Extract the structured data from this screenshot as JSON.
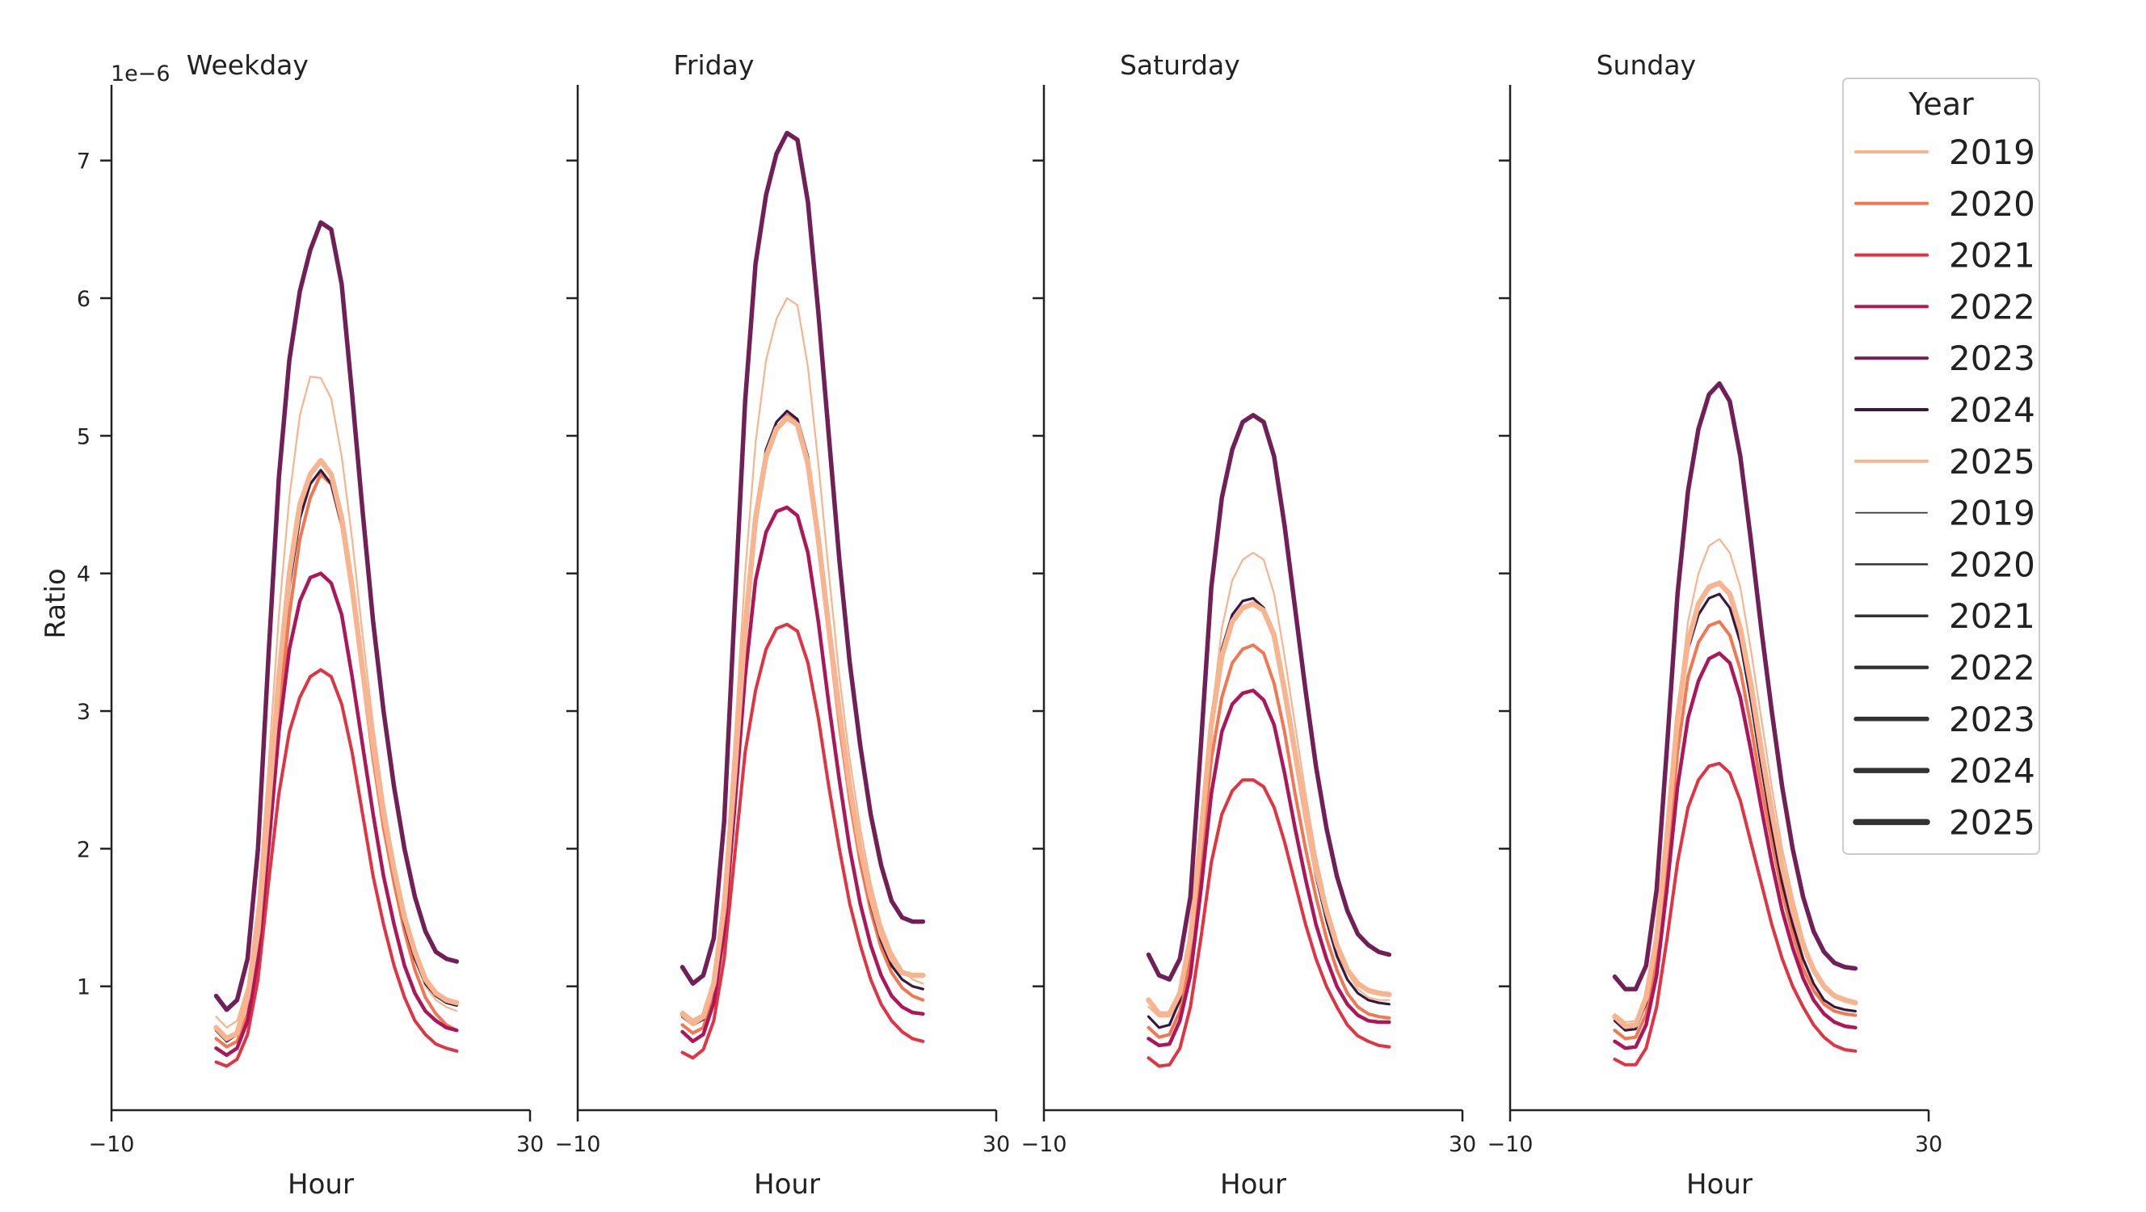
{
  "chart_data": {
    "type": "line",
    "y_exponent_label": "1e−6",
    "ylabel": "Ratio",
    "xlabel": "Hour",
    "xlim": [
      -10,
      30
    ],
    "ylim": [
      0.1,
      7.55
    ],
    "x_ticks": [
      -10,
      30
    ],
    "x_tick_labels": [
      "−10",
      "30"
    ],
    "y_ticks": [
      1,
      2,
      3,
      4,
      5,
      6,
      7
    ],
    "y_tick_labels": [
      "1",
      "2",
      "3",
      "4",
      "5",
      "6",
      "7"
    ],
    "x": [
      0,
      1,
      2,
      3,
      4,
      5,
      6,
      7,
      8,
      9,
      10,
      11,
      12,
      13,
      14,
      15,
      16,
      17,
      18,
      19,
      20,
      21,
      22,
      23
    ],
    "legend": {
      "title": "Year",
      "position": "upper-right",
      "hue_entries": [
        {
          "label": "2019",
          "color": "#f6b48f"
        },
        {
          "label": "2020",
          "color": "#f37651"
        },
        {
          "label": "2021",
          "color": "#e13342"
        },
        {
          "label": "2022",
          "color": "#ad1759"
        },
        {
          "label": "2023",
          "color": "#701f57"
        },
        {
          "label": "2024",
          "color": "#35193e"
        },
        {
          "label": "2025",
          "color": "#f6b48f"
        }
      ],
      "size_entries": [
        {
          "label": "2019",
          "color": "#333333"
        },
        {
          "label": "2020",
          "color": "#333333"
        },
        {
          "label": "2021",
          "color": "#333333"
        },
        {
          "label": "2022",
          "color": "#333333"
        },
        {
          "label": "2023",
          "color": "#333333"
        },
        {
          "label": "2024",
          "color": "#333333"
        },
        {
          "label": "2025",
          "color": "#333333"
        }
      ]
    },
    "panels": [
      {
        "title": "Weekday",
        "series": [
          {
            "name": "2019",
            "color": "#f6b48f",
            "values": [
              0.78,
              0.7,
              0.75,
              1.0,
              1.6,
              2.6,
              3.7,
              4.55,
              5.15,
              5.43,
              5.42,
              5.27,
              4.85,
              4.25,
              3.55,
              2.9,
              2.35,
              1.9,
              1.5,
              1.2,
              1.0,
              0.9,
              0.85,
              0.82
            ]
          },
          {
            "name": "2020",
            "color": "#f37651",
            "values": [
              0.62,
              0.56,
              0.6,
              0.8,
              1.25,
              2.05,
              2.95,
              3.7,
              4.25,
              4.55,
              4.72,
              4.65,
              4.35,
              3.85,
              3.25,
              2.65,
              2.15,
              1.75,
              1.4,
              1.12,
              0.92,
              0.8,
              0.72,
              0.68
            ]
          },
          {
            "name": "2021",
            "color": "#e13342",
            "values": [
              0.45,
              0.42,
              0.47,
              0.65,
              1.05,
              1.75,
              2.4,
              2.85,
              3.1,
              3.25,
              3.3,
              3.25,
              3.05,
              2.7,
              2.25,
              1.8,
              1.45,
              1.15,
              0.92,
              0.75,
              0.65,
              0.58,
              0.55,
              0.53
            ]
          },
          {
            "name": "2022",
            "color": "#ad1759",
            "values": [
              0.55,
              0.5,
              0.55,
              0.75,
              1.2,
              2.0,
              2.85,
              3.45,
              3.8,
              3.97,
              4.0,
              3.93,
              3.7,
              3.25,
              2.75,
              2.25,
              1.8,
              1.45,
              1.15,
              0.95,
              0.82,
              0.75,
              0.7,
              0.68
            ]
          },
          {
            "name": "2023",
            "color": "#701f57",
            "values": [
              0.93,
              0.83,
              0.9,
              1.2,
              2.0,
              3.4,
              4.7,
              5.55,
              6.05,
              6.35,
              6.55,
              6.5,
              6.1,
              5.3,
              4.45,
              3.65,
              3.0,
              2.45,
              2.0,
              1.65,
              1.4,
              1.25,
              1.2,
              1.18
            ]
          },
          {
            "name": "2024",
            "color": "#35193e",
            "values": [
              0.68,
              0.6,
              0.65,
              0.9,
              1.35,
              2.2,
              3.15,
              3.9,
              4.4,
              4.65,
              4.75,
              4.65,
              4.35,
              3.85,
              3.25,
              2.7,
              2.2,
              1.8,
              1.45,
              1.2,
              1.02,
              0.93,
              0.88,
              0.86
            ]
          },
          {
            "name": "2025",
            "color": "#f6b48f",
            "values": [
              0.7,
              0.62,
              0.66,
              0.92,
              1.4,
              2.3,
              3.25,
              4.0,
              4.5,
              4.72,
              4.82,
              4.72,
              4.4,
              3.9,
              3.3,
              2.75,
              2.25,
              1.85,
              1.5,
              1.25,
              1.05,
              0.95,
              0.9,
              0.88
            ]
          }
        ]
      },
      {
        "title": "Friday",
        "series": [
          {
            "name": "2019",
            "color": "#f6b48f",
            "values": [
              0.82,
              0.76,
              0.8,
              1.05,
              1.7,
              2.8,
              4.0,
              4.95,
              5.55,
              5.85,
              6.0,
              5.95,
              5.5,
              4.8,
              4.0,
              3.25,
              2.65,
              2.15,
              1.75,
              1.45,
              1.25,
              1.12,
              1.05,
              1.02
            ]
          },
          {
            "name": "2020",
            "color": "#f37651",
            "values": [
              0.72,
              0.66,
              0.7,
              0.95,
              1.5,
              2.45,
              3.5,
              4.35,
              4.85,
              5.05,
              5.15,
              5.1,
              4.8,
              4.2,
              3.55,
              2.9,
              2.35,
              1.9,
              1.55,
              1.28,
              1.1,
              0.99,
              0.93,
              0.9
            ]
          },
          {
            "name": "2021",
            "color": "#e13342",
            "values": [
              0.52,
              0.48,
              0.54,
              0.75,
              1.2,
              1.95,
              2.7,
              3.15,
              3.45,
              3.6,
              3.63,
              3.58,
              3.35,
              2.95,
              2.45,
              2.0,
              1.6,
              1.3,
              1.05,
              0.87,
              0.75,
              0.67,
              0.62,
              0.6
            ]
          },
          {
            "name": "2022",
            "color": "#ad1759",
            "values": [
              0.67,
              0.6,
              0.65,
              0.88,
              1.4,
              2.3,
              3.25,
              3.95,
              4.3,
              4.45,
              4.48,
              4.42,
              4.15,
              3.65,
              3.05,
              2.5,
              2.0,
              1.6,
              1.3,
              1.08,
              0.93,
              0.85,
              0.81,
              0.8
            ]
          },
          {
            "name": "2023",
            "color": "#701f57",
            "values": [
              1.14,
              1.02,
              1.08,
              1.35,
              2.2,
              3.75,
              5.25,
              6.25,
              6.75,
              7.05,
              7.2,
              7.15,
              6.7,
              5.9,
              5.0,
              4.1,
              3.35,
              2.75,
              2.25,
              1.88,
              1.62,
              1.5,
              1.47,
              1.47
            ]
          },
          {
            "name": "2024",
            "color": "#35193e",
            "values": [
              0.78,
              0.72,
              0.76,
              1.0,
              1.55,
              2.55,
              3.6,
              4.45,
              4.9,
              5.1,
              5.18,
              5.12,
              4.85,
              4.25,
              3.6,
              2.95,
              2.4,
              1.95,
              1.6,
              1.33,
              1.15,
              1.05,
              1.0,
              0.98
            ]
          },
          {
            "name": "2025",
            "color": "#f6b48f",
            "values": [
              0.8,
              0.73,
              0.78,
              1.02,
              1.58,
              2.55,
              3.6,
              4.4,
              4.85,
              5.05,
              5.13,
              5.08,
              4.8,
              4.25,
              3.6,
              3.0,
              2.45,
              2.0,
              1.65,
              1.38,
              1.2,
              1.1,
              1.08,
              1.08
            ]
          }
        ]
      },
      {
        "title": "Saturday",
        "series": [
          {
            "name": "2019",
            "color": "#f6b48f",
            "values": [
              0.85,
              0.78,
              0.78,
              0.95,
              1.35,
              2.1,
              2.95,
              3.6,
              3.95,
              4.1,
              4.15,
              4.1,
              3.85,
              3.4,
              2.9,
              2.4,
              1.95,
              1.6,
              1.3,
              1.1,
              0.98,
              0.92,
              0.9,
              0.9
            ]
          },
          {
            "name": "2020",
            "color": "#f37651",
            "values": [
              0.7,
              0.63,
              0.65,
              0.82,
              1.2,
              1.9,
              2.65,
              3.1,
              3.35,
              3.45,
              3.48,
              3.42,
              3.2,
              2.85,
              2.4,
              2.0,
              1.65,
              1.35,
              1.12,
              0.95,
              0.85,
              0.8,
              0.78,
              0.77
            ]
          },
          {
            "name": "2021",
            "color": "#e13342",
            "values": [
              0.48,
              0.42,
              0.43,
              0.55,
              0.85,
              1.35,
              1.9,
              2.25,
              2.42,
              2.5,
              2.5,
              2.45,
              2.3,
              2.05,
              1.75,
              1.45,
              1.2,
              1.0,
              0.85,
              0.72,
              0.64,
              0.6,
              0.57,
              0.56
            ]
          },
          {
            "name": "2022",
            "color": "#ad1759",
            "values": [
              0.62,
              0.57,
              0.58,
              0.75,
              1.08,
              1.7,
              2.4,
              2.85,
              3.05,
              3.13,
              3.15,
              3.08,
              2.9,
              2.55,
              2.15,
              1.78,
              1.45,
              1.2,
              1.0,
              0.87,
              0.79,
              0.75,
              0.74,
              0.74
            ]
          },
          {
            "name": "2023",
            "color": "#701f57",
            "values": [
              1.23,
              1.08,
              1.05,
              1.2,
              1.65,
              2.75,
              3.9,
              4.55,
              4.9,
              5.1,
              5.15,
              5.1,
              4.85,
              4.35,
              3.75,
              3.15,
              2.6,
              2.15,
              1.8,
              1.55,
              1.38,
              1.3,
              1.25,
              1.23
            ]
          },
          {
            "name": "2024",
            "color": "#35193e",
            "values": [
              0.78,
              0.7,
              0.72,
              0.9,
              1.3,
              2.05,
              2.9,
              3.45,
              3.7,
              3.8,
              3.82,
              3.75,
              3.55,
              3.15,
              2.65,
              2.2,
              1.8,
              1.48,
              1.22,
              1.05,
              0.95,
              0.9,
              0.88,
              0.87
            ]
          },
          {
            "name": "2025",
            "color": "#f6b48f",
            "values": [
              0.9,
              0.8,
              0.8,
              0.95,
              1.35,
              2.1,
              2.9,
              3.4,
              3.65,
              3.75,
              3.78,
              3.73,
              3.55,
              3.15,
              2.7,
              2.25,
              1.85,
              1.55,
              1.3,
              1.12,
              1.02,
              0.97,
              0.95,
              0.94
            ]
          }
        ]
      },
      {
        "title": "Sunday",
        "series": [
          {
            "name": "2019",
            "color": "#f6b48f",
            "values": [
              0.8,
              0.74,
              0.75,
              0.95,
              1.4,
              2.15,
              3.0,
              3.65,
              4.0,
              4.2,
              4.25,
              4.15,
              3.9,
              3.45,
              2.95,
              2.45,
              2.0,
              1.65,
              1.35,
              1.12,
              0.98,
              0.92,
              0.9,
              0.88
            ]
          },
          {
            "name": "2020",
            "color": "#f37651",
            "values": [
              0.68,
              0.62,
              0.63,
              0.8,
              1.2,
              1.9,
              2.7,
              3.25,
              3.5,
              3.62,
              3.65,
              3.55,
              3.3,
              2.9,
              2.45,
              2.05,
              1.68,
              1.38,
              1.13,
              0.97,
              0.87,
              0.82,
              0.8,
              0.79
            ]
          },
          {
            "name": "2021",
            "color": "#e13342",
            "values": [
              0.47,
              0.43,
              0.43,
              0.55,
              0.85,
              1.35,
              1.9,
              2.3,
              2.5,
              2.6,
              2.62,
              2.55,
              2.35,
              2.05,
              1.75,
              1.45,
              1.2,
              1.0,
              0.85,
              0.72,
              0.63,
              0.57,
              0.54,
              0.53
            ]
          },
          {
            "name": "2022",
            "color": "#ad1759",
            "values": [
              0.6,
              0.55,
              0.56,
              0.72,
              1.08,
              1.72,
              2.45,
              2.95,
              3.22,
              3.38,
              3.42,
              3.35,
              3.1,
              2.72,
              2.3,
              1.9,
              1.55,
              1.28,
              1.06,
              0.9,
              0.8,
              0.74,
              0.71,
              0.7
            ]
          },
          {
            "name": "2023",
            "color": "#701f57",
            "values": [
              1.07,
              0.98,
              0.98,
              1.15,
              1.7,
              2.75,
              3.85,
              4.6,
              5.05,
              5.3,
              5.38,
              5.25,
              4.85,
              4.25,
              3.6,
              3.0,
              2.45,
              2.0,
              1.65,
              1.4,
              1.25,
              1.17,
              1.14,
              1.13
            ]
          },
          {
            "name": "2024",
            "color": "#35193e",
            "values": [
              0.75,
              0.68,
              0.69,
              0.88,
              1.3,
              2.05,
              2.9,
              3.45,
              3.7,
              3.82,
              3.85,
              3.75,
              3.5,
              3.08,
              2.6,
              2.15,
              1.75,
              1.45,
              1.2,
              1.02,
              0.9,
              0.85,
              0.83,
              0.82
            ]
          },
          {
            "name": "2025",
            "color": "#f6b48f",
            "values": [
              0.78,
              0.71,
              0.72,
              0.92,
              1.35,
              2.1,
              2.95,
              3.5,
              3.78,
              3.9,
              3.93,
              3.85,
              3.6,
              3.2,
              2.72,
              2.27,
              1.87,
              1.55,
              1.3,
              1.12,
              1.0,
              0.93,
              0.9,
              0.88
            ]
          }
        ]
      }
    ]
  }
}
